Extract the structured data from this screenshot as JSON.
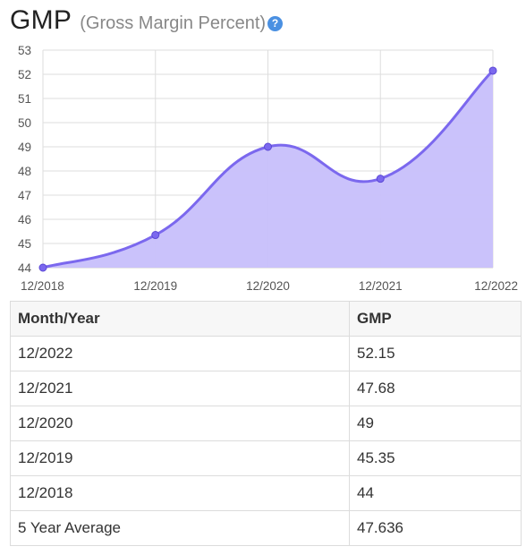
{
  "header": {
    "title": "GMP",
    "subtitle": "(Gross Margin Percent)",
    "help_glyph": "?"
  },
  "colors": {
    "line": "#7b68ee",
    "fill": "#c7bffb",
    "grid": "#dddddd",
    "help_icon": "#4a90e2"
  },
  "chart_data": {
    "type": "area",
    "x": [
      "12/2018",
      "12/2019",
      "12/2020",
      "12/2021",
      "12/2022"
    ],
    "series": [
      {
        "values": [
          44,
          45.35,
          49,
          47.68,
          52.15
        ]
      }
    ],
    "yticks": [
      44,
      45,
      46,
      47,
      48,
      49,
      50,
      51,
      52,
      53
    ],
    "ylim": [
      44,
      53
    ],
    "grid": true,
    "title": "",
    "xlabel": "",
    "ylabel": ""
  },
  "table": {
    "headers": [
      "Month/Year",
      "GMP"
    ],
    "rows": [
      [
        "12/2022",
        "52.15"
      ],
      [
        "12/2021",
        "47.68"
      ],
      [
        "12/2020",
        "49"
      ],
      [
        "12/2019",
        "45.35"
      ],
      [
        "12/2018",
        "44"
      ],
      [
        "5 Year Average",
        "47.636"
      ]
    ]
  }
}
